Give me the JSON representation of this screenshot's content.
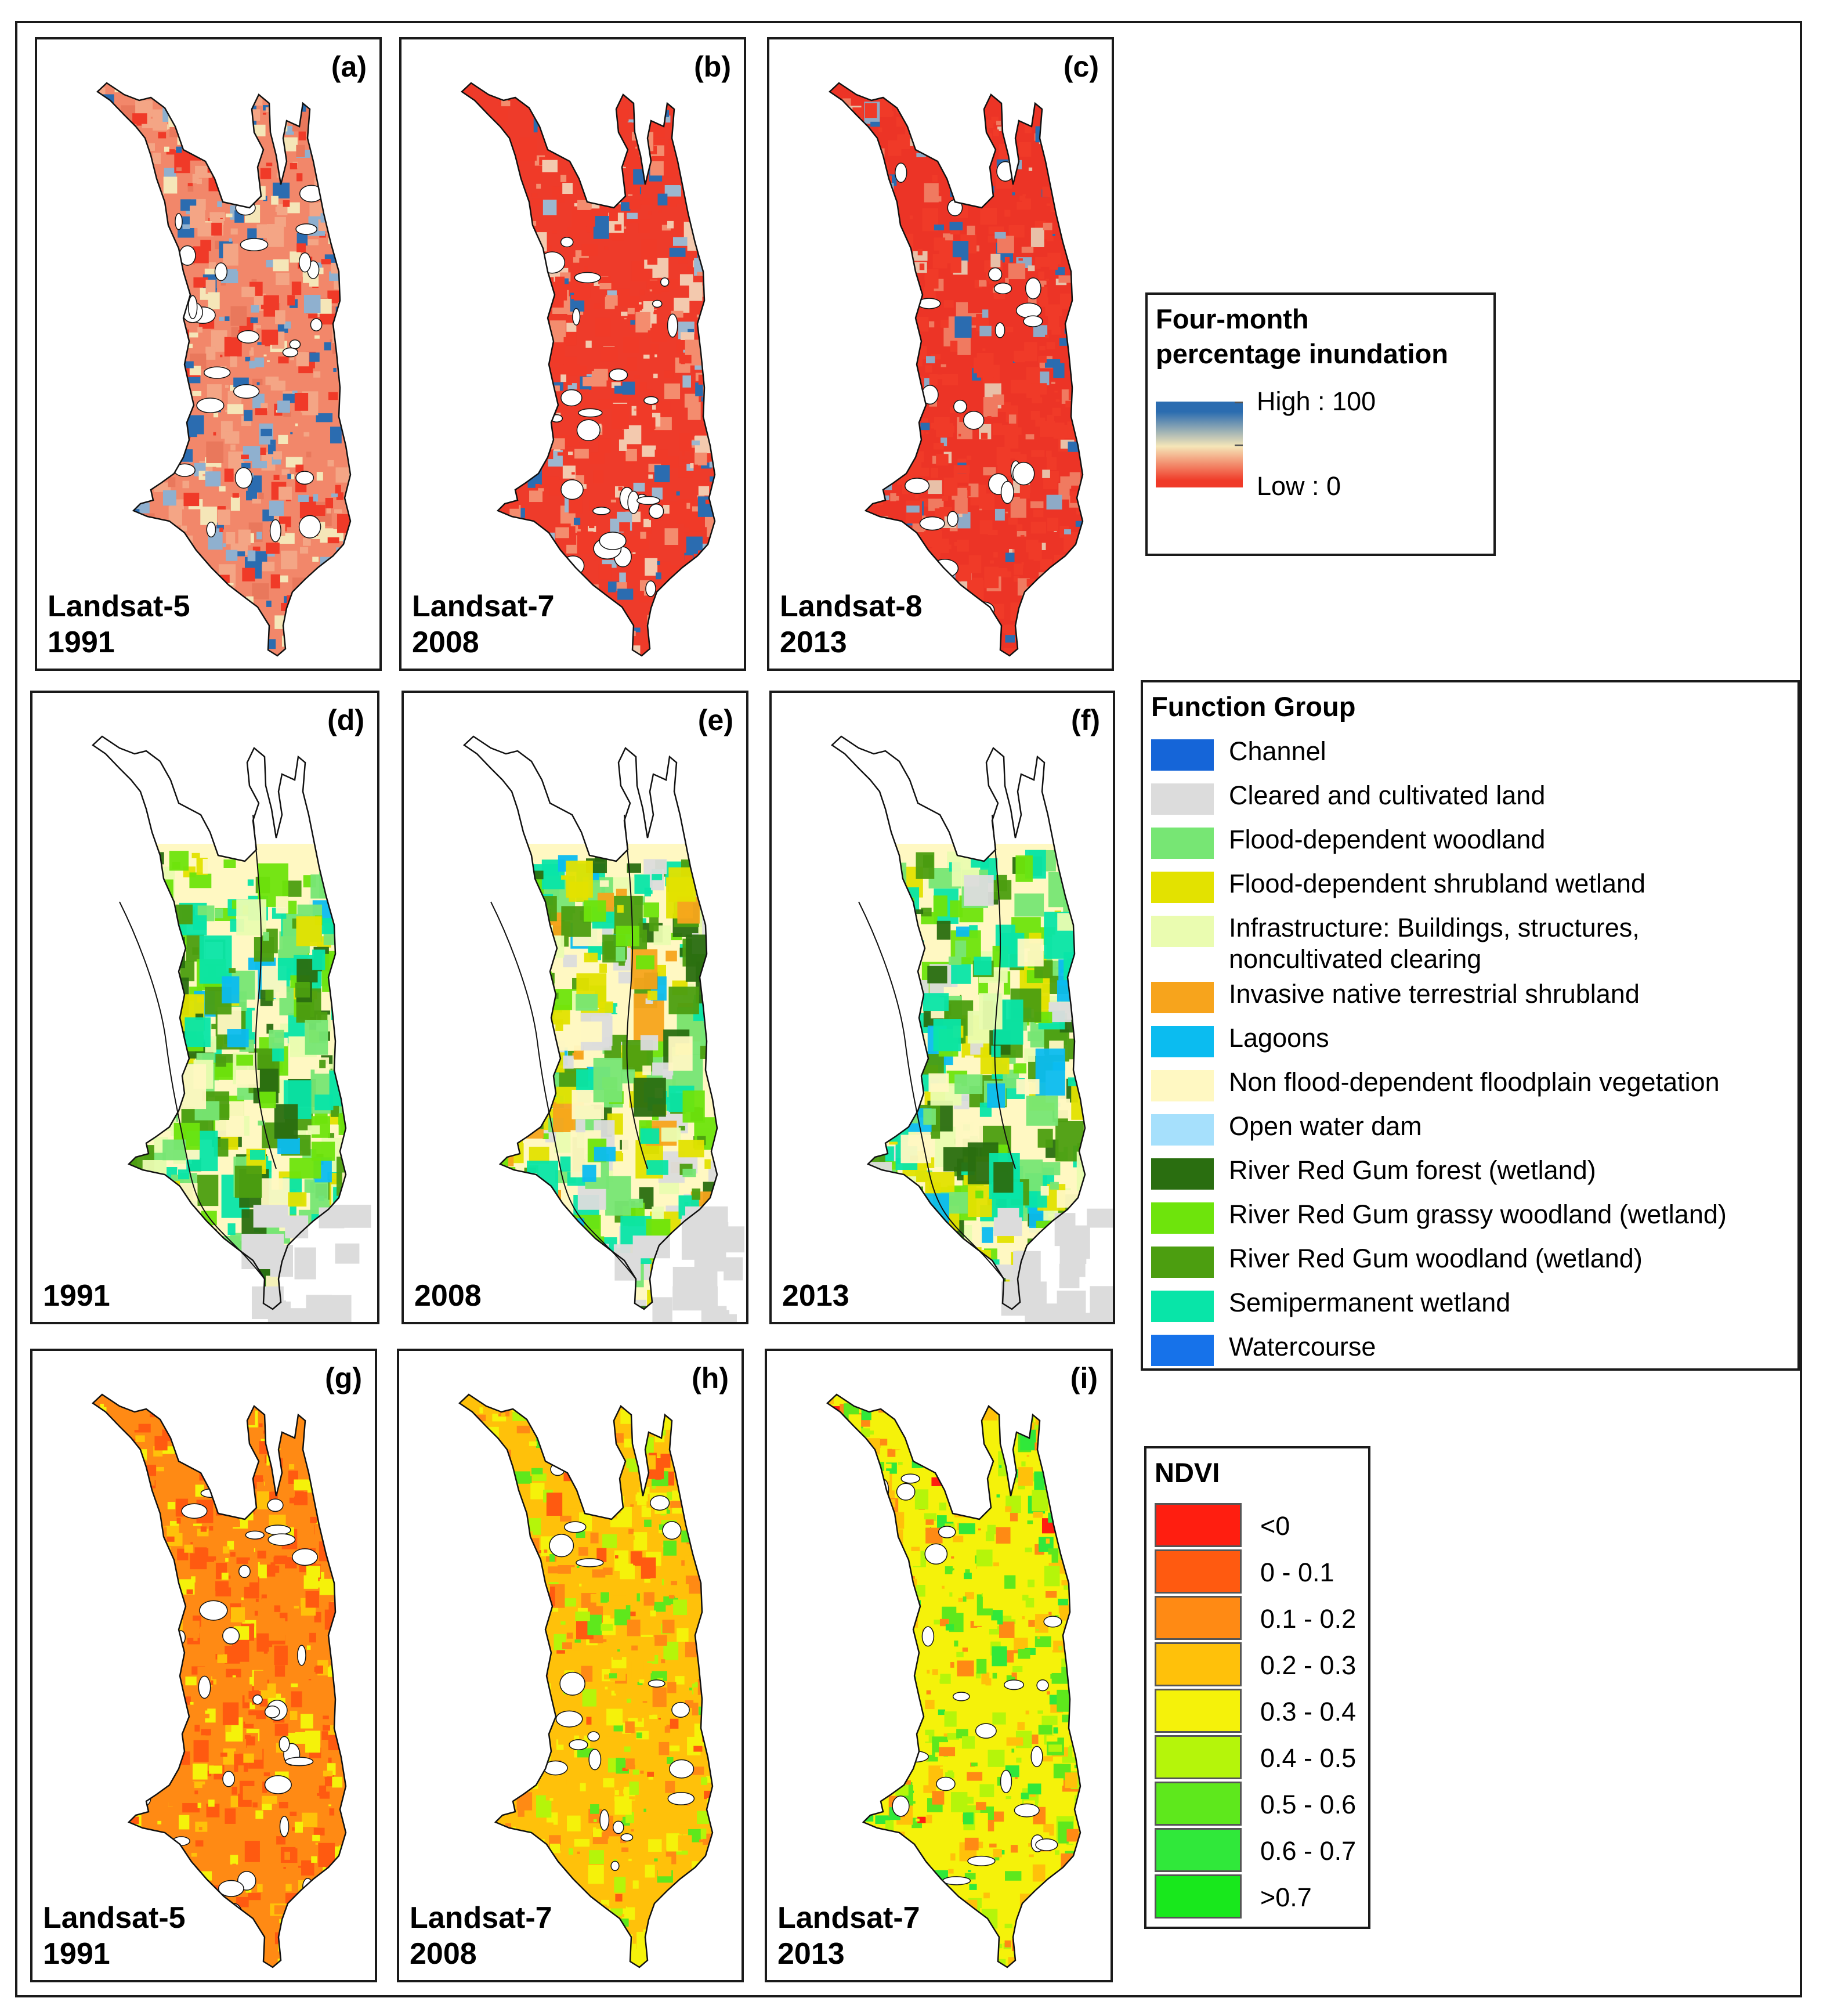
{
  "panels": [
    {
      "id": "a",
      "label": "(a)",
      "sensor": "Landsat-5",
      "year": "1991",
      "type": "inundation",
      "variant": 0
    },
    {
      "id": "b",
      "label": "(b)",
      "sensor": "Landsat-7",
      "year": "2008",
      "type": "inundation",
      "variant": 1
    },
    {
      "id": "c",
      "label": "(c)",
      "sensor": "Landsat-8",
      "year": "2013",
      "type": "inundation",
      "variant": 2
    },
    {
      "id": "d",
      "label": "(d)",
      "sensor": "",
      "year": "1991",
      "type": "function",
      "variant": 0
    },
    {
      "id": "e",
      "label": "(e)",
      "sensor": "",
      "year": "2008",
      "type": "function",
      "variant": 1
    },
    {
      "id": "f",
      "label": "(f)",
      "sensor": "",
      "year": "2013",
      "type": "function",
      "variant": 2
    },
    {
      "id": "g",
      "label": "(g)",
      "sensor": "Landsat-5",
      "year": "1991",
      "type": "ndvi",
      "variant": 0
    },
    {
      "id": "h",
      "label": "(h)",
      "sensor": "Landsat-7",
      "year": "2008",
      "type": "ndvi",
      "variant": 1
    },
    {
      "id": "i",
      "label": "(i)",
      "sensor": "Landsat-7",
      "year": "2013",
      "type": "ndvi",
      "variant": 2
    }
  ],
  "inundation_legend": {
    "title_line1": "Four-month",
    "title_line2": "percentage inundation",
    "high_label": "High : 100",
    "low_label": "Low : 0",
    "high_color": "#2b6cb0",
    "mid_color": "#f5e6b8",
    "low_color": "#f03a28"
  },
  "function_legend": {
    "title": "Function Group",
    "items": [
      {
        "label": "Channel",
        "color": "#1565d8"
      },
      {
        "label": "Cleared and cultivated land",
        "color": "#dcdcdc"
      },
      {
        "label": "Flood-dependent woodland",
        "color": "#77e674"
      },
      {
        "label": "Flood-dependent shrubland wetland",
        "color": "#e3e200"
      },
      {
        "label": "Infrastructure: Buildings, structures,",
        "label2": "noncultivated clearing",
        "color": "#eafcb0"
      },
      {
        "label": "Invasive native terrestrial shrubland",
        "color": "#f7a41c"
      },
      {
        "label": "Lagoons",
        "color": "#0bbcf0"
      },
      {
        "label": "Non flood-dependent floodplain vegetation",
        "color": "#fff8c2"
      },
      {
        "label": "Open water dam",
        "color": "#a6e0fc"
      },
      {
        "label": "River Red Gum forest (wetland)",
        "color": "#2a6e10"
      },
      {
        "label": "River Red Gum grassy woodland (wetland)",
        "color": "#6ee40c"
      },
      {
        "label": "River Red Gum woodland (wetland)",
        "color": "#4c9e10"
      },
      {
        "label": "Semipermanent wetland",
        "color": "#08e5a8"
      },
      {
        "label": "Watercourse",
        "color": "#1672ea"
      }
    ]
  },
  "ndvi_legend": {
    "title": "NDVI",
    "items": [
      {
        "label": "<0",
        "color": "#ff1e10"
      },
      {
        "label": "0 - 0.1",
        "color": "#ff5a10"
      },
      {
        "label": "0.1 - 0.2",
        "color": "#ff8a14"
      },
      {
        "label": "0.2 - 0.3",
        "color": "#ffc10a"
      },
      {
        "label": "0.3 - 0.4",
        "color": "#f5f20a"
      },
      {
        "label": "0.4 - 0.5",
        "color": "#b5f50a"
      },
      {
        "label": "0.5 - 0.6",
        "color": "#5ee81c"
      },
      {
        "label": "0.6 - 0.7",
        "color": "#30e83a"
      },
      {
        "label": ">0.7",
        "color": "#18e81c"
      }
    ]
  }
}
